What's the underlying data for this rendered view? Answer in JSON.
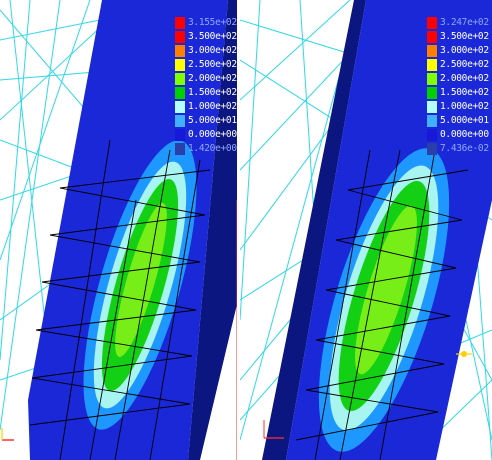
{
  "viewports": [
    {
      "id": "left",
      "legend": {
        "max_label": "3.155e+02",
        "min_label": "1.420e+00",
        "levels": [
          {
            "label": "3.500e+02",
            "color": "#ff0000"
          },
          {
            "label": "3.000e+02",
            "color": "#ff7f00"
          },
          {
            "label": "2.500e+02",
            "color": "#ffff00"
          },
          {
            "label": "2.000e+02",
            "color": "#7fff00"
          },
          {
            "label": "1.500e+02",
            "color": "#00d000"
          },
          {
            "label": "1.000e+02",
            "color": "#b4ffff"
          },
          {
            "label": "5.000e+01",
            "color": "#40b0ff"
          },
          {
            "label": "0.000e+00",
            "color": "#1818d8"
          }
        ],
        "min_color": "#2a3fa8"
      }
    },
    {
      "id": "right",
      "legend": {
        "max_label": "3.247e+02",
        "min_label": "7.436e-02",
        "levels": [
          {
            "label": "3.500e+02",
            "color": "#ff0000"
          },
          {
            "label": "3.000e+02",
            "color": "#ff7f00"
          },
          {
            "label": "2.500e+02",
            "color": "#ffff00"
          },
          {
            "label": "2.000e+02",
            "color": "#7fff00"
          },
          {
            "label": "1.500e+02",
            "color": "#00d000"
          },
          {
            "label": "1.000e+02",
            "color": "#b4ffff"
          },
          {
            "label": "5.000e+01",
            "color": "#40b0ff"
          },
          {
            "label": "0.000e+00",
            "color": "#1818d8"
          }
        ],
        "min_color": "#2a3fa8"
      }
    }
  ],
  "colors": {
    "plate": "#1a28d8",
    "plate_edge": "#0c1680",
    "wireframe": "#30d8e8",
    "mesh": "#000000",
    "contour_outer": "#1e98ff",
    "contour_light": "#a8f4f0",
    "contour_green": "#14d014",
    "contour_core": "#78ee18"
  },
  "icons": {
    "axis_triad": "axis-triad-icon",
    "point_marker": "point-marker-icon"
  }
}
